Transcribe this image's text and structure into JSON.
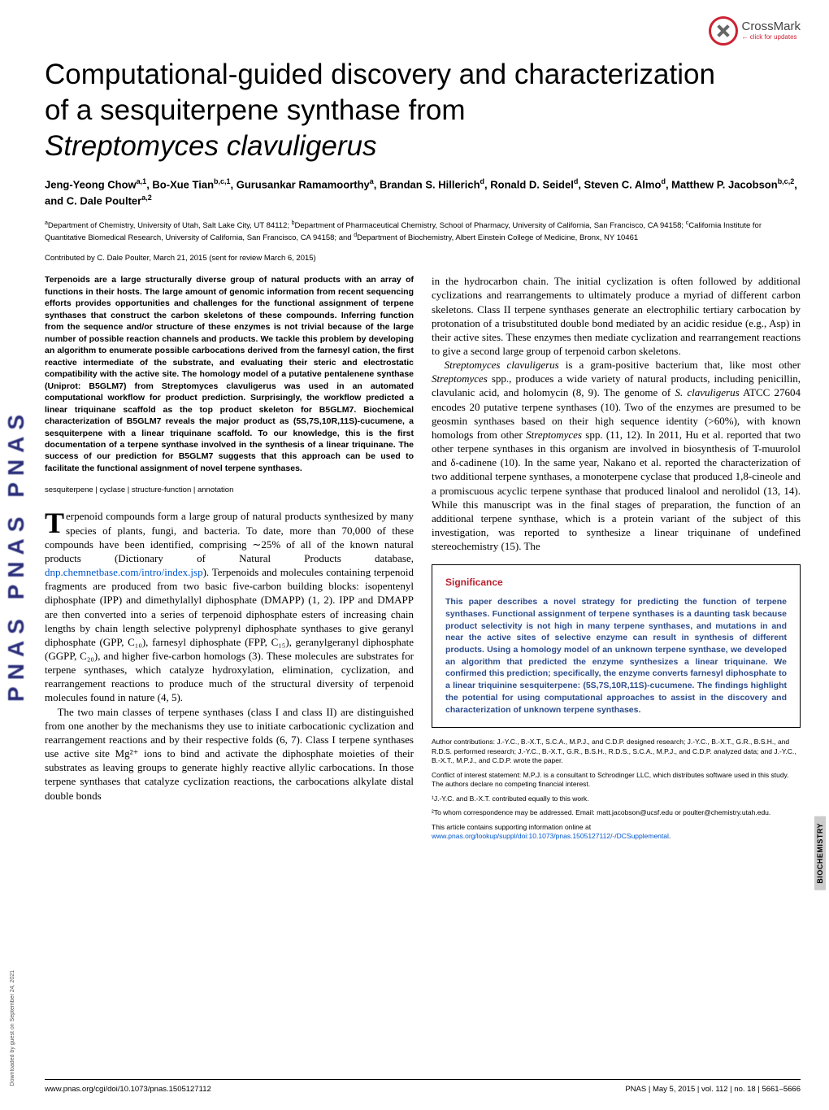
{
  "crossmark": {
    "top": "CrossMark",
    "bottom": "← click for updates"
  },
  "title_line1": "Computational-guided discovery and characterization",
  "title_line2": "of a sesquiterpene synthase from",
  "title_line3_italic": "Streptomyces clavuligerus",
  "authors_html": "Jeng-Yeong Chow<sup>a,1</sup>, Bo-Xue Tian<sup>b,c,1</sup>, Gurusankar Ramamoorthy<sup>a</sup>, Brandan S. Hillerich<sup>d</sup>, Ronald D. Seidel<sup>d</sup>, Steven C. Almo<sup>d</sup>, Matthew P. Jacobson<sup>b,c,2</sup>, and C. Dale Poulter<sup>a,2</sup>",
  "affiliations_html": "<sup>a</sup>Department of Chemistry, University of Utah, Salt Lake City, UT 84112; <sup>b</sup>Department of Pharmaceutical Chemistry, School of Pharmacy, University of California, San Francisco, CA 94158; <sup>c</sup>California Institute for Quantitative Biomedical Research, University of California, San Francisco, CA 94158; and <sup>d</sup>Department of Biochemistry, Albert Einstein College of Medicine, Bronx, NY 10461",
  "contributed": "Contributed by C. Dale Poulter, March 21, 2015 (sent for review March 6, 2015)",
  "abstract": "Terpenoids are a large structurally diverse group of natural products with an array of functions in their hosts. The large amount of genomic information from recent sequencing efforts provides opportunities and challenges for the functional assignment of terpene synthases that construct the carbon skeletons of these compounds. Inferring function from the sequence and/or structure of these enzymes is not trivial because of the large number of possible reaction channels and products. We tackle this problem by developing an algorithm to enumerate possible carbocations derived from the farnesyl cation, the first reactive intermediate of the substrate, and evaluating their steric and electrostatic compatibility with the active site. The homology model of a putative pentalenene synthase (Uniprot: B5GLM7) from Streptomyces clavuligerus was used in an automated computational workflow for product prediction. Surprisingly, the workflow predicted a linear triquinane scaffold as the top product skeleton for B5GLM7. Biochemical characterization of B5GLM7 reveals the major product as (5S,7S,10R,11S)-cucumene, a sesquiterpene with a linear triquinane scaffold. To our knowledge, this is the first documentation of a terpene synthase involved in the synthesis of a linear triquinane. The success of our prediction for B5GLM7 suggests that this approach can be used to facilitate the functional assignment of novel terpene synthases.",
  "keywords": "sesquiterpene | cyclase | structure-function | annotation",
  "body_left_p1": "erpenoid compounds form a large group of natural products synthesized by many species of plants, fungi, and bacteria. To date, more than 70,000 of these compounds have been identified, comprising ∼25% of all of the known natural products (Dictionary of Natural Products database, ",
  "body_left_link": "dnp.chemnetbase.com/intro/index.jsp",
  "body_left_p1b": "). Terpenoids and molecules containing terpenoid fragments are produced from two basic five-carbon building blocks: isopentenyl diphosphate (IPP) and dimethylallyl diphosphate (DMAPP) (1, 2). IPP and DMAPP are then converted into a series of terpenoid diphosphate esters of increasing chain lengths by chain length selective polyprenyl diphosphate synthases to give geranyl diphosphate (GPP, C₁₀), farnesyl diphosphate (FPP, C₁₅), geranylgeranyl diphosphate (GGPP, C₂₀), and higher five-carbon homologs (3). These molecules are substrates for terpene synthases, which catalyze hydroxylation, elimination, cyclization, and rearrangement reactions to produce much of the structural diversity of terpenoid molecules found in nature (4, 5).",
  "body_left_p2": "The two main classes of terpene synthases (class I and class II) are distinguished from one another by the mechanisms they use to initiate carbocationic cyclization and rearrangement reactions and by their respective folds (6, 7). Class I terpene synthases use active site Mg²⁺ ions to bind and activate the diphosphate moieties of their substrates as leaving groups to generate highly reactive allylic carbocations. In those terpene synthases that catalyze cyclization reactions, the carbocations alkylate distal double bonds",
  "body_right_p1": "in the hydrocarbon chain. The initial cyclization is often followed by additional cyclizations and rearrangements to ultimately produce a myriad of different carbon skeletons. Class II terpene synthases generate an electrophilic tertiary carbocation by protonation of a trisubstituted double bond mediated by an acidic residue (e.g., Asp) in their active sites. These enzymes then mediate cyclization and rearrangement reactions to give a second large group of terpenoid carbon skeletons.",
  "body_right_p2a": "Streptomyces clavuligerus",
  "body_right_p2b": " is a gram-positive bacterium that, like most other ",
  "body_right_p2c": "Streptomyces",
  "body_right_p2d": " spp., produces a wide variety of natural products, including penicillin, clavulanic acid, and holomycin (8, 9). The genome of ",
  "body_right_p2e": "S. clavuligerus",
  "body_right_p2f": " ATCC 27604 encodes 20 putative terpene synthases (10). Two of the enzymes are presumed to be geosmin synthases based on their high sequence identity (>60%), with known homologs from other ",
  "body_right_p2g": "Streptomyces",
  "body_right_p2h": " spp. (11, 12). In 2011, Hu et al. reported that two other terpene synthases in this organism are involved in biosynthesis of T-muurolol and δ-cadinene (10). In the same year, Nakano et al. reported the characterization of two additional terpene synthases, a monoterpene cyclase that produced 1,8-cineole and a promiscuous acyclic terpene synthase that produced linalool and nerolidol (13, 14). While this manuscript was in the final stages of preparation, the function of an additional terpene synthase, which is a protein variant of the subject of this investigation, was reported to synthesize a linear triquinane of undefined stereochemistry (15). The",
  "significance": {
    "title": "Significance",
    "body": "This paper describes a novel strategy for predicting the function of terpene synthases. Functional assignment of terpene synthases is a daunting task because product selectivity is not high in many terpene synthases, and mutations in and near the active sites of selective enzyme can result in synthesis of different products. Using a homology model of an unknown terpene synthase, we developed an algorithm that predicted the enzyme synthesizes a linear triquinane. We confirmed this prediction; specifically, the enzyme converts farnesyl diphosphate to a linear triquinine sesquiterpene: (5S,7S,10R,11S)-cucumene. The findings highlight the potential for using computational approaches to assist in the discovery and characterization of unknown terpene synthases."
  },
  "footnotes": {
    "contrib": "Author contributions: J.-Y.C., B.-X.T., S.C.A., M.P.J., and C.D.P. designed research; J.-Y.C., B.-X.T., G.R., B.S.H., and R.D.S. performed research; J.-Y.C., B.-X.T., G.R., B.S.H., R.D.S., S.C.A., M.P.J., and C.D.P. analyzed data; and J.-Y.C., B.-X.T., M.P.J., and C.D.P. wrote the paper.",
    "coi": "Conflict of interest statement: M.P.J. is a consultant to Schrodinger LLC, which distributes software used in this study. The authors declare no competing financial interest.",
    "equal": "¹J.-Y.C. and B.-X.T. contributed equally to this work.",
    "corr": "²To whom correspondence may be addressed. Email: matt.jacobson@ucsf.edu or poulter@chemistry.utah.edu.",
    "si_a": "This article contains supporting information online at ",
    "si_link": "www.pnas.org/lookup/suppl/doi:10.1073/pnas.1505127112/-/DCSupplemental",
    "si_b": "."
  },
  "footer": {
    "left": "www.pnas.org/cgi/doi/10.1073/pnas.1505127112",
    "right": "PNAS | May 5, 2015 | vol. 112 | no. 18 | 5661–5666"
  },
  "vtab": "BIOCHEMISTRY",
  "download": "Downloaded by guest on September 24, 2021",
  "pnas_logo": "PNAS PNAS PNAS"
}
